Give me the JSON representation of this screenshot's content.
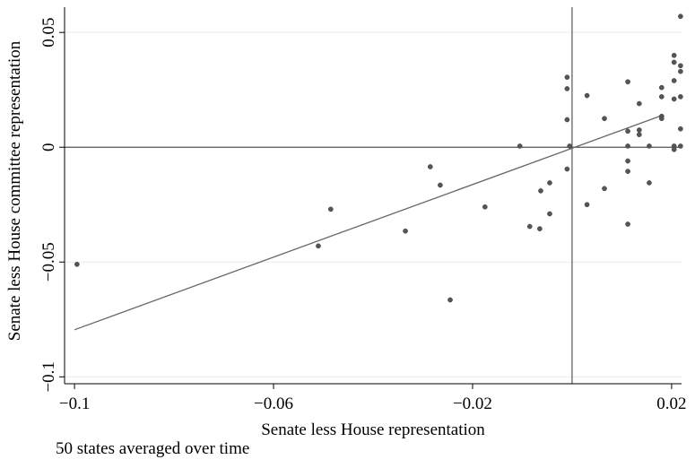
{
  "chart_data": {
    "type": "scatter",
    "title": "",
    "xlabel": "Senate less House representation",
    "ylabel": "Senate less House committee representation",
    "note": "50 states averaged over time",
    "xlim": [
      -0.102,
      0.022
    ],
    "ylim": [
      -0.103,
      0.061
    ],
    "xticks": [
      {
        "value": -0.1,
        "label": "−0.1"
      },
      {
        "value": -0.06,
        "label": "−0.06"
      },
      {
        "value": -0.02,
        "label": "−0.02"
      },
      {
        "value": 0.02,
        "label": "0.02"
      }
    ],
    "yticks": [
      {
        "value": 0.05,
        "label": "0.05"
      },
      {
        "value": 0,
        "label": "0"
      },
      {
        "value": -0.05,
        "label": "−0.05"
      },
      {
        "value": -0.1,
        "label": "−0.1"
      }
    ],
    "reference_lines": {
      "x": 0,
      "y": 0
    },
    "grid": true,
    "fit_line": {
      "x": [
        -0.1,
        0.018
      ],
      "y": [
        -0.0795,
        0.0138
      ]
    },
    "points": [
      {
        "x": -0.0995,
        "y": -0.051
      },
      {
        "x": -0.051,
        "y": -0.043
      },
      {
        "x": -0.0485,
        "y": -0.027
      },
      {
        "x": -0.0335,
        "y": -0.0365
      },
      {
        "x": -0.0285,
        "y": -0.0085
      },
      {
        "x": -0.0265,
        "y": -0.0165
      },
      {
        "x": -0.0245,
        "y": -0.0665
      },
      {
        "x": -0.0175,
        "y": -0.026
      },
      {
        "x": -0.0105,
        "y": 0.0005
      },
      {
        "x": -0.0085,
        "y": -0.0345
      },
      {
        "x": -0.0065,
        "y": -0.0355
      },
      {
        "x": -0.0063,
        "y": -0.019
      },
      {
        "x": -0.0045,
        "y": -0.029
      },
      {
        "x": -0.0045,
        "y": -0.0155
      },
      {
        "x": -0.001,
        "y": 0.0305
      },
      {
        "x": -0.001,
        "y": 0.0255
      },
      {
        "x": -0.001,
        "y": 0.012
      },
      {
        "x": -0.001,
        "y": -0.0095
      },
      {
        "x": 0.003,
        "y": 0.0225
      },
      {
        "x": 0.003,
        "y": -0.025
      },
      {
        "x": 0.0065,
        "y": 0.0125
      },
      {
        "x": 0.0065,
        "y": -0.018
      },
      {
        "x": 0.0112,
        "y": 0.0285
      },
      {
        "x": 0.0112,
        "y": 0.007
      },
      {
        "x": 0.0112,
        "y": 0.0005
      },
      {
        "x": 0.0112,
        "y": -0.006
      },
      {
        "x": 0.0112,
        "y": -0.0105
      },
      {
        "x": 0.0112,
        "y": -0.0335
      },
      {
        "x": 0.0135,
        "y": 0.019
      },
      {
        "x": 0.0135,
        "y": 0.0075
      },
      {
        "x": 0.0135,
        "y": 0.0055
      },
      {
        "x": 0.0155,
        "y": 0.0005
      },
      {
        "x": 0.0155,
        "y": -0.0155
      },
      {
        "x": 0.018,
        "y": 0.026
      },
      {
        "x": 0.018,
        "y": 0.022
      },
      {
        "x": 0.018,
        "y": 0.0135
      },
      {
        "x": 0.018,
        "y": 0.0125
      },
      {
        "x": 0.0205,
        "y": 0.04
      },
      {
        "x": 0.0205,
        "y": 0.037
      },
      {
        "x": 0.0205,
        "y": 0.029
      },
      {
        "x": 0.0205,
        "y": 0.021
      },
      {
        "x": 0.0205,
        "y": 0.0005
      },
      {
        "x": 0.0205,
        "y": -0.001
      },
      {
        "x": 0.0218,
        "y": 0.057
      },
      {
        "x": 0.0218,
        "y": 0.0355
      },
      {
        "x": 0.0218,
        "y": 0.033
      },
      {
        "x": 0.0218,
        "y": 0.022
      },
      {
        "x": 0.0218,
        "y": 0.008
      },
      {
        "x": 0.0218,
        "y": 0.0005
      },
      {
        "x": -0.0005,
        "y": 0.0005
      }
    ]
  },
  "colors": {
    "point": "#555555",
    "line": "#666666",
    "grid": "#eaeaea",
    "axis": "#000000"
  }
}
